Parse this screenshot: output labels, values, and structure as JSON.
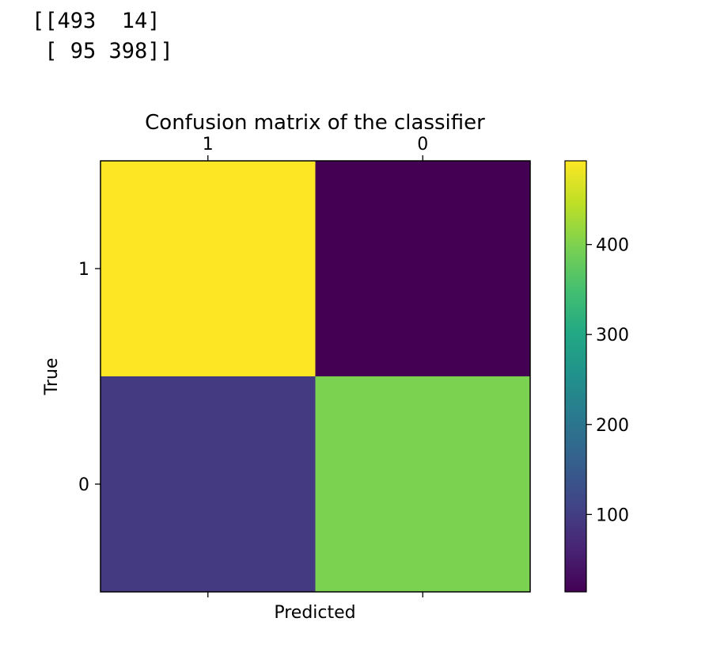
{
  "output": {
    "line1": "[[493  14]",
    "line2": " [ 95 398]]"
  },
  "chart_data": {
    "type": "heatmap",
    "title": "Confusion matrix of the classifier",
    "xlabel": "Predicted",
    "ylabel": "True",
    "x_categories": [
      "1",
      "0"
    ],
    "y_categories": [
      "1",
      "0"
    ],
    "matrix": [
      [
        493,
        14
      ],
      [
        95,
        398
      ]
    ],
    "colormap": "viridis",
    "colorbar": {
      "range": [
        14,
        493
      ],
      "ticks": [
        100,
        200,
        300,
        400
      ]
    },
    "grid": false
  }
}
